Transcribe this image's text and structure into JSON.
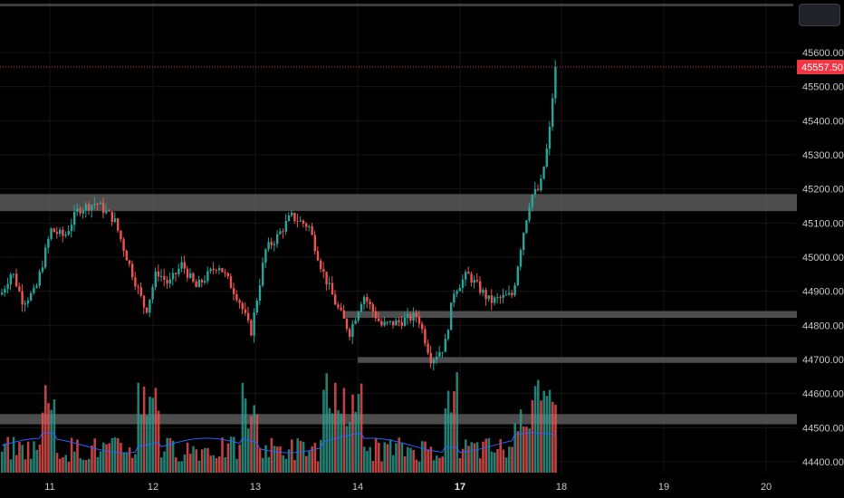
{
  "colors": {
    "background": "#000000",
    "up": "#26a69a",
    "down": "#ef5350",
    "last_price": "#f23645",
    "zone": "#5a5a5a",
    "volume_ma": "#2962ff"
  },
  "price_axis": {
    "ticks": [
      "45600.00",
      "45500.00",
      "45400.00",
      "45300.00",
      "45200.00",
      "45100.00",
      "45000.00",
      "44900.00",
      "44800.00",
      "44700.00",
      "44600.00",
      "44500.00",
      "44400.00"
    ],
    "range": [
      44375,
      45640
    ]
  },
  "last_price": {
    "label": "45557.50",
    "value": 45557.5
  },
  "chart_data": {
    "type": "candlestick",
    "title": "",
    "x": [
      "11",
      "12",
      "13",
      "14",
      "17",
      "18",
      "19",
      "20"
    ],
    "ylim": [
      44375,
      45640
    ],
    "zones": [
      {
        "from": 45135,
        "to": 45185
      },
      {
        "from": 44822,
        "to": 44842
      },
      {
        "from": 44690,
        "to": 44707
      },
      {
        "from": 44510,
        "to": 44540
      }
    ],
    "ohlc_path": [
      {
        "session": "11",
        "open": 44890,
        "close": 45080,
        "shape": "rally"
      },
      {
        "session": "11",
        "close": 45165,
        "shape": "peak"
      },
      {
        "session": "12",
        "close": 44830,
        "shape": "selloff"
      },
      {
        "session": "12",
        "close": 44950,
        "shape": "range"
      },
      {
        "session": "13",
        "close": 44780,
        "shape": "low"
      },
      {
        "session": "13",
        "close": 45120,
        "shape": "bounce"
      },
      {
        "session": "14",
        "close": 44800,
        "shape": "decline"
      },
      {
        "session": "14",
        "close": 44700,
        "shape": "bottom"
      },
      {
        "session": "17",
        "close": 44870,
        "shape": "base"
      },
      {
        "session": "17",
        "close": 45200,
        "shape": "breakout"
      },
      {
        "session": "18",
        "close": 45557.5,
        "shape": "spike"
      }
    ]
  }
}
